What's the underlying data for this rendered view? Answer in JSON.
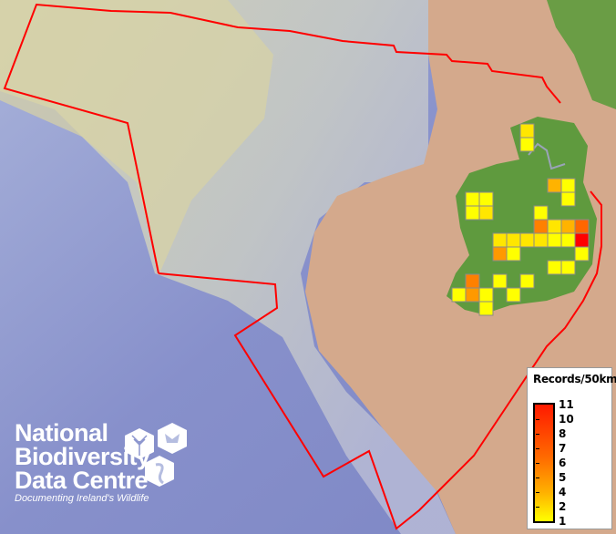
{
  "legend": {
    "title": "Records/50km",
    "ticks": [
      "11",
      "10",
      "8",
      "7",
      "6",
      "5",
      "4",
      "2",
      "1"
    ],
    "color_low": "#ffff00",
    "color_high": "#ff0000"
  },
  "logo": {
    "line1": "National",
    "line2": "Biodiversity",
    "line3": "Data Centre",
    "tagline": "Documenting Ireland's Wildlife"
  },
  "map": {
    "boundary_color": "#ff0000",
    "cell_size": "50km",
    "records": [
      {
        "col": 5,
        "row": 0,
        "value": 2
      },
      {
        "col": 5,
        "row": 1,
        "value": 1
      },
      {
        "col": 7,
        "row": 4,
        "value": 4
      },
      {
        "col": 8,
        "row": 4,
        "value": 1
      },
      {
        "col": 1,
        "row": 5,
        "value": 1
      },
      {
        "col": 2,
        "row": 5,
        "value": 1
      },
      {
        "col": 8,
        "row": 5,
        "value": 1
      },
      {
        "col": 1,
        "row": 6,
        "value": 1
      },
      {
        "col": 2,
        "row": 6,
        "value": 2
      },
      {
        "col": 6,
        "row": 6,
        "value": 1
      },
      {
        "col": 6,
        "row": 7,
        "value": 6
      },
      {
        "col": 7,
        "row": 7,
        "value": 2
      },
      {
        "col": 8,
        "row": 7,
        "value": 4
      },
      {
        "col": 9,
        "row": 7,
        "value": 7
      },
      {
        "col": 3,
        "row": 8,
        "value": 2
      },
      {
        "col": 4,
        "row": 8,
        "value": 2
      },
      {
        "col": 5,
        "row": 8,
        "value": 2
      },
      {
        "col": 6,
        "row": 8,
        "value": 2
      },
      {
        "col": 7,
        "row": 8,
        "value": 1
      },
      {
        "col": 8,
        "row": 8,
        "value": 1
      },
      {
        "col": 9,
        "row": 8,
        "value": 11
      },
      {
        "col": 3,
        "row": 9,
        "value": 5
      },
      {
        "col": 4,
        "row": 9,
        "value": 1
      },
      {
        "col": 9,
        "row": 9,
        "value": 1
      },
      {
        "col": 7,
        "row": 10,
        "value": 1
      },
      {
        "col": 8,
        "row": 10,
        "value": 1
      },
      {
        "col": 1,
        "row": 11,
        "value": 6
      },
      {
        "col": 3,
        "row": 11,
        "value": 1
      },
      {
        "col": 5,
        "row": 11,
        "value": 1
      },
      {
        "col": 0,
        "row": 12,
        "value": 1
      },
      {
        "col": 1,
        "row": 12,
        "value": 5
      },
      {
        "col": 2,
        "row": 12,
        "value": 1
      },
      {
        "col": 4,
        "row": 12,
        "value": 1
      },
      {
        "col": 2,
        "row": 13,
        "value": 1
      }
    ]
  }
}
